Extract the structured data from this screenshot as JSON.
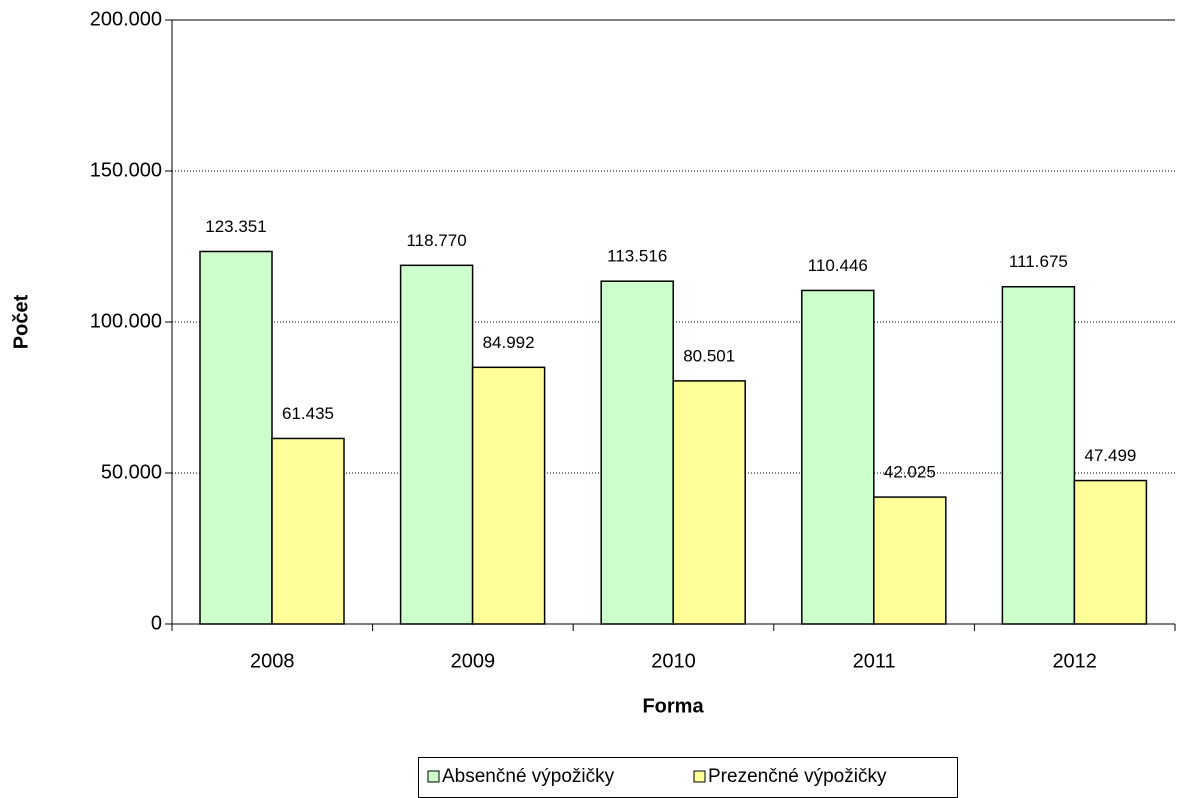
{
  "chart_data": {
    "type": "bar",
    "x_label": "Forma",
    "y_label": "Počet",
    "categories": [
      "2008",
      "2009",
      "2010",
      "2011",
      "2012"
    ],
    "series": [
      {
        "name": "Absenčné výpožičky",
        "color": "#ccffcc",
        "values": [
          123351,
          118770,
          113516,
          110446,
          111675
        ],
        "value_labels": [
          "123.351",
          "118.770",
          "113.516",
          "110.446",
          "111.675"
        ]
      },
      {
        "name": "Prezenčné výpožičky",
        "color": "#ffff99",
        "values": [
          61435,
          84992,
          80501,
          42025,
          47499
        ],
        "value_labels": [
          "61.435",
          "84.992",
          "80.501",
          "42.025",
          "47.499"
        ]
      }
    ],
    "ylim": [
      0,
      200000
    ],
    "yticks": [
      0,
      {
        "value": 50000,
        "label": "50.000"
      },
      {
        "value": 100000,
        "label": "100.000"
      },
      {
        "value": 150000,
        "label": "150.000"
      },
      {
        "value": 200000,
        "label": "200.000"
      }
    ],
    "grid": true,
    "legend": "bottom"
  }
}
